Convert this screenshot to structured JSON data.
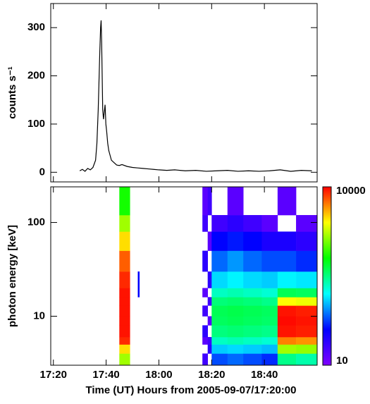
{
  "chart_data": [
    {
      "type": "line",
      "y_label": "counts s⁻¹",
      "color": "#000000",
      "x": [
        10,
        11,
        12,
        13,
        14,
        15,
        16,
        16.5,
        17,
        17.3,
        17.6,
        17.9,
        18.1,
        18.3,
        18.5,
        18.7,
        19,
        19.3,
        19.6,
        19.9,
        20.2,
        20.6,
        21,
        21.5,
        22,
        23,
        24,
        25,
        26,
        28,
        30,
        32,
        34,
        36,
        38,
        40,
        43,
        46,
        50,
        54,
        58,
        62,
        66,
        70,
        74,
        78,
        82,
        86,
        90,
        94,
        98
      ],
      "values": [
        3,
        6,
        2,
        8,
        5,
        10,
        25,
        60,
        130,
        190,
        250,
        300,
        315,
        270,
        200,
        130,
        110,
        125,
        140,
        100,
        85,
        60,
        45,
        35,
        25,
        20,
        15,
        14,
        16,
        12,
        10,
        9,
        8,
        7,
        6,
        5,
        4,
        5,
        3,
        4,
        2,
        3,
        4,
        2,
        3,
        2,
        3,
        5,
        2,
        4,
        3
      ],
      "xlim": [
        -1,
        100
      ],
      "xticks": [
        0,
        20,
        40,
        60,
        80
      ],
      "ylim": [
        -20,
        350
      ],
      "yticks": [
        0,
        100,
        200,
        300
      ]
    },
    {
      "type": "spectrogram",
      "y_label": "photon energy [keV]",
      "x_label": "Time (UT) Hours from 2005-09-07/17:20:00",
      "xlim": [
        -1,
        100
      ],
      "xticks": [
        {
          "value": 0,
          "label": "17:20"
        },
        {
          "value": 20,
          "label": "17:40"
        },
        {
          "value": 40,
          "label": "18:00"
        },
        {
          "value": 60,
          "label": "18:20"
        },
        {
          "value": 80,
          "label": "18:40"
        }
      ],
      "ylim": [
        3,
        240
      ],
      "yticks": [
        10,
        100
      ],
      "log_y": true,
      "energy_edges": [
        3,
        4,
        5,
        6,
        8,
        10,
        13,
        16,
        20,
        30,
        50,
        80,
        120,
        240
      ],
      "columns": [
        {
          "start": 25,
          "end": 29,
          "counts": [
            1500,
            3000,
            8000,
            9000,
            9000,
            9000,
            9000,
            9000,
            8000,
            6000,
            3000,
            1500,
            700
          ]
        },
        {
          "start": 32,
          "end": 32.6,
          "counts": [
            null,
            null,
            null,
            null,
            null,
            null,
            null,
            40,
            40,
            null,
            null,
            null,
            null
          ]
        },
        {
          "start": 56.5,
          "end": 58.5,
          "counts": [
            20,
            null,
            15,
            25,
            null,
            20,
            null,
            15,
            null,
            25,
            null,
            20,
            15
          ]
        },
        {
          "start": 58.5,
          "end": 60,
          "counts": [
            null,
            25,
            20,
            null,
            15,
            null,
            20,
            null,
            25,
            null,
            15,
            null,
            20
          ]
        },
        {
          "start": 60,
          "end": 66,
          "counts": [
            60,
            120,
            220,
            320,
            380,
            400,
            330,
            220,
            130,
            70,
            40,
            20,
            null
          ]
        },
        {
          "start": 66,
          "end": 72,
          "counts": [
            70,
            130,
            240,
            340,
            400,
            420,
            350,
            240,
            150,
            90,
            45,
            25,
            15
          ]
        },
        {
          "start": 72,
          "end": 79,
          "counts": [
            60,
            120,
            220,
            320,
            380,
            400,
            330,
            220,
            130,
            70,
            40,
            20,
            null
          ]
        },
        {
          "start": 79,
          "end": 85,
          "counts": [
            50,
            110,
            200,
            300,
            360,
            380,
            300,
            200,
            120,
            60,
            30,
            15,
            null
          ]
        },
        {
          "start": 85,
          "end": 92,
          "counts": [
            300,
            1500,
            5000,
            9000,
            9500,
            9000,
            2500,
            400,
            150,
            60,
            30,
            null,
            15
          ]
        },
        {
          "start": 92,
          "end": 100,
          "counts": [
            250,
            1400,
            4500,
            8500,
            9000,
            8500,
            2300,
            380,
            140,
            50,
            25,
            15,
            null
          ]
        }
      ],
      "colorbar": {
        "lim": [
          10,
          10000
        ],
        "ticks": [
          10,
          10000
        ],
        "log": true
      },
      "colormap": [
        "#7f00ff",
        "#0000ff",
        "#00ffff",
        "#00ff00",
        "#ffff00",
        "#ff0000"
      ]
    }
  ]
}
